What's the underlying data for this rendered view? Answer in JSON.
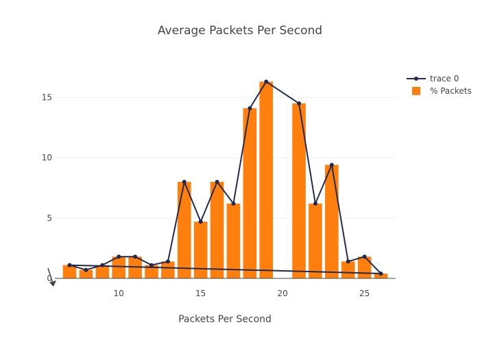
{
  "chart_data": {
    "type": "bar",
    "title": "Average Packets Per Second",
    "xlabel": "Packets Per Second",
    "ylabel": "",
    "xlim": [
      6.1,
      26.9
    ],
    "ylim": [
      0,
      17.4
    ],
    "x_ticks": [
      10,
      15,
      20,
      25
    ],
    "y_ticks": [
      5,
      10,
      15
    ],
    "y_zero_label": "0",
    "grid": true,
    "legend_position": "top-right",
    "series": [
      {
        "name": "trace 0",
        "kind": "line",
        "color": "#1f2a4f",
        "x": [
          7,
          8,
          9,
          10,
          11,
          12,
          13,
          14,
          15,
          16,
          17,
          18,
          19,
          21,
          22,
          23,
          24,
          25,
          26,
          7
        ],
        "y": [
          1.1,
          0.7,
          1.1,
          1.8,
          1.8,
          1.1,
          1.4,
          8.0,
          4.7,
          8.0,
          6.2,
          14.1,
          16.3,
          14.5,
          6.2,
          9.4,
          1.4,
          1.8,
          0.4,
          1.1
        ]
      },
      {
        "name": "% Packets",
        "kind": "bar",
        "color": "#ff7f0e",
        "x": [
          7,
          8,
          9,
          10,
          11,
          12,
          13,
          14,
          15,
          16,
          17,
          18,
          19,
          21,
          22,
          23,
          24,
          25,
          26
        ],
        "y": [
          1.1,
          0.7,
          1.1,
          1.8,
          1.8,
          1.1,
          1.4,
          8.0,
          4.7,
          8.0,
          6.2,
          14.1,
          16.3,
          14.5,
          6.2,
          9.4,
          1.4,
          1.8,
          0.4
        ]
      }
    ]
  }
}
